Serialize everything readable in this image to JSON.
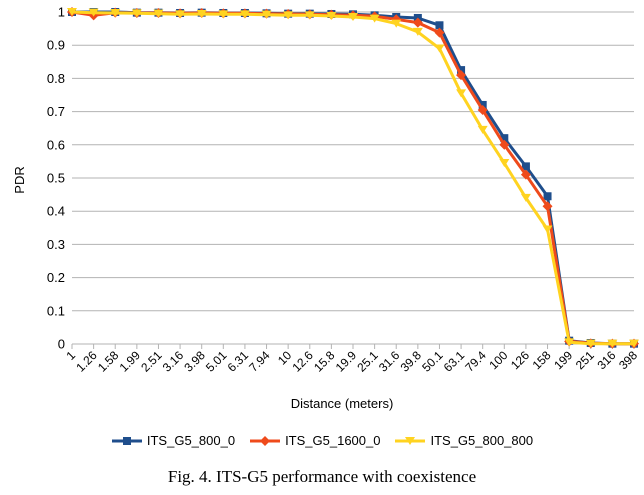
{
  "chart_data": {
    "type": "line",
    "xlabel": "Distance (meters)",
    "ylabel": "PDR",
    "ylim": [
      0,
      1
    ],
    "yticks": [
      "0",
      "0.1",
      "0.2",
      "0.3",
      "0.4",
      "0.5",
      "0.6",
      "0.7",
      "0.8",
      "0.9",
      "1"
    ],
    "grid": "horizontal",
    "legend_position": "bottom",
    "categories": [
      "1",
      "1.26",
      "1.58",
      "1.99",
      "2.51",
      "3.16",
      "3.98",
      "5.01",
      "6.31",
      "7.94",
      "10",
      "12.6",
      "15.8",
      "19.9",
      "25.1",
      "31.6",
      "39.8",
      "50.1",
      "63.1",
      "79.4",
      "100",
      "126",
      "158",
      "199",
      "251",
      "316",
      "398"
    ],
    "series": [
      {
        "name": "ITS_G5_800_0",
        "color": "#1f4e8c",
        "marker": "square",
        "values": [
          1,
          1,
          1,
          0.998,
          0.998,
          0.997,
          0.998,
          0.997,
          0.997,
          0.996,
          0.995,
          0.995,
          0.994,
          0.993,
          0.99,
          0.985,
          0.982,
          0.96,
          0.825,
          0.72,
          0.62,
          0.535,
          0.445,
          0.01,
          0.003,
          0.001,
          0.001
        ]
      },
      {
        "name": "ITS_G5_1600_0",
        "color": "#ef4a1b",
        "marker": "diamond",
        "values": [
          1,
          0.99,
          0.998,
          0.997,
          0.997,
          0.996,
          0.997,
          0.996,
          0.996,
          0.995,
          0.994,
          0.993,
          0.992,
          0.99,
          0.987,
          0.978,
          0.968,
          0.938,
          0.81,
          0.705,
          0.6,
          0.51,
          0.415,
          0.008,
          0.002,
          0.001,
          0.001
        ]
      },
      {
        "name": "ITS_G5_800_800",
        "color": "#ffd320",
        "marker": "triangle",
        "values": [
          1,
          0.998,
          0.997,
          0.996,
          0.995,
          0.993,
          0.994,
          0.993,
          0.993,
          0.992,
          0.99,
          0.99,
          0.988,
          0.985,
          0.98,
          0.965,
          0.94,
          0.89,
          0.755,
          0.645,
          0.545,
          0.44,
          0.345,
          0.005,
          0.001,
          0.001,
          0.001
        ]
      }
    ]
  },
  "caption": "Fig. 4.   ITS-G5 performance with coexistence"
}
